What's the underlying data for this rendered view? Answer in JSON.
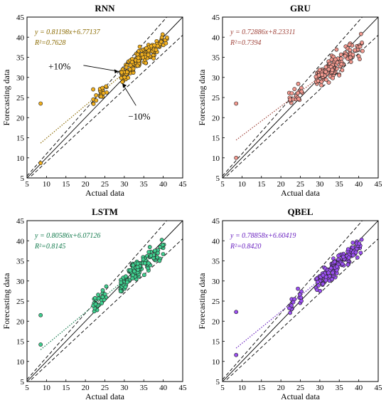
{
  "chart_data": [
    {
      "type": "scatter",
      "title": "RNN",
      "xlabel": "Actual data",
      "ylabel": "Forecasting data",
      "xlim": [
        5,
        45
      ],
      "ylim": [
        5,
        45
      ],
      "xticks": [
        5,
        10,
        15,
        20,
        25,
        30,
        35,
        40,
        45
      ],
      "yticks": [
        5,
        10,
        15,
        20,
        25,
        30,
        35,
        40,
        45
      ],
      "equation": "y = 0.81198x+6.77137",
      "r2": "R²=0.7628",
      "slope": 0.81198,
      "intercept": 6.77137,
      "point_color": "#f2b01e",
      "text_color": "#8a6a00",
      "annotations": [
        "+10%",
        "−10%"
      ],
      "seed": 11,
      "outliers": [
        [
          8.5,
          23.5
        ],
        [
          8.5,
          8.7
        ]
      ]
    },
    {
      "type": "scatter",
      "title": "GRU",
      "xlabel": "Actual data",
      "ylabel": "Forecasting data",
      "xlim": [
        5,
        45
      ],
      "ylim": [
        5,
        45
      ],
      "xticks": [
        5,
        10,
        15,
        20,
        25,
        30,
        35,
        40,
        45
      ],
      "yticks": [
        5,
        10,
        15,
        20,
        25,
        30,
        35,
        40,
        45
      ],
      "equation": "y = 0.72886x+8.23311",
      "r2": "R²=0.7394",
      "slope": 0.72886,
      "intercept": 8.23311,
      "point_color": "#f3998f",
      "text_color": "#a0443b",
      "annotations": [],
      "seed": 23,
      "outliers": [
        [
          8.5,
          23.5
        ],
        [
          8.5,
          10.0
        ]
      ]
    },
    {
      "type": "scatter",
      "title": "LSTM",
      "xlabel": "Actual data",
      "ylabel": "Forecasting data",
      "xlim": [
        5,
        45
      ],
      "ylim": [
        5,
        45
      ],
      "xticks": [
        5,
        10,
        15,
        20,
        25,
        30,
        35,
        40,
        45
      ],
      "yticks": [
        5,
        10,
        15,
        20,
        25,
        30,
        35,
        40,
        45
      ],
      "equation": "y = 0.80586x+6.07126",
      "r2": "R²=0.8145",
      "slope": 0.80586,
      "intercept": 6.07126,
      "point_color": "#3fcf8f",
      "text_color": "#127a4c",
      "annotations": [],
      "seed": 37,
      "outliers": [
        [
          8.5,
          21.5
        ],
        [
          8.5,
          14.2
        ]
      ]
    },
    {
      "type": "scatter",
      "title": "QBEL",
      "xlabel": "Actual data",
      "ylabel": "Forecasting data",
      "xlim": [
        5,
        45
      ],
      "ylim": [
        5,
        45
      ],
      "xticks": [
        5,
        10,
        15,
        20,
        25,
        30,
        35,
        40,
        45
      ],
      "yticks": [
        5,
        10,
        15,
        20,
        25,
        30,
        35,
        40,
        45
      ],
      "equation": "y = 0.78858x+6.60419",
      "r2": "R²=0.8420",
      "slope": 0.78858,
      "intercept": 6.60419,
      "point_color": "#9a4ff0",
      "text_color": "#6a22c0",
      "annotations": [],
      "seed": 51,
      "outliers": [
        [
          8.5,
          22.3
        ],
        [
          8.5,
          11.6
        ]
      ]
    }
  ]
}
